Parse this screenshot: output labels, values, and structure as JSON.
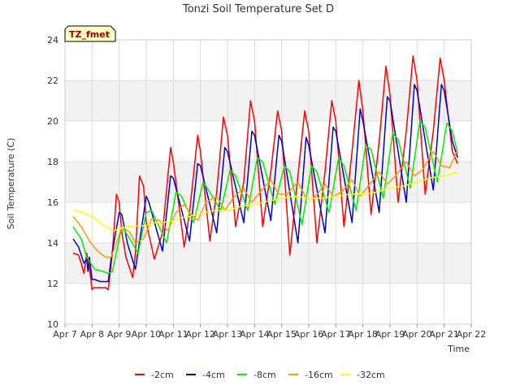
{
  "chart_data": {
    "type": "line",
    "title": "Tonzi Soil Temperature Set D",
    "badge": "TZ_fmet",
    "xlabel": "Time",
    "ylabel": "Soil Temperature (C)",
    "ylim": [
      10,
      24
    ],
    "yticks": [
      10,
      12,
      14,
      16,
      18,
      20,
      22,
      24
    ],
    "xlim": [
      7,
      22
    ],
    "xticks": [
      {
        "x": 7,
        "label": "Apr 7"
      },
      {
        "x": 8,
        "label": "Apr 8"
      },
      {
        "x": 9,
        "label": "Apr 9"
      },
      {
        "x": 10,
        "label": "Apr 10"
      },
      {
        "x": 11,
        "label": "Apr 11"
      },
      {
        "x": 12,
        "label": "Apr 12"
      },
      {
        "x": 13,
        "label": "Apr 13"
      },
      {
        "x": 14,
        "label": "Apr 14"
      },
      {
        "x": 15,
        "label": "Apr 15"
      },
      {
        "x": 16,
        "label": "Apr 16"
      },
      {
        "x": 17,
        "label": "Apr 17"
      },
      {
        "x": 18,
        "label": "Apr 18"
      },
      {
        "x": 19,
        "label": "Apr 19"
      },
      {
        "x": 20,
        "label": "Apr 20"
      },
      {
        "x": 21,
        "label": "Apr 21"
      },
      {
        "x": 22,
        "label": "Apr 22"
      }
    ],
    "grid": true,
    "legend_position": "bottom",
    "series": [
      {
        "name": "-2cm",
        "color": "#ff0000",
        "x": [
          7.3,
          7.5,
          7.6,
          7.7,
          7.8,
          7.9,
          8.0,
          8.05,
          8.2,
          8.5,
          8.6,
          8.75,
          8.9,
          9.0,
          9.1,
          9.25,
          9.5,
          9.6,
          9.75,
          9.9,
          10.0,
          10.3,
          10.6,
          10.9,
          11.0,
          11.4,
          11.6,
          11.9,
          12.0,
          12.35,
          12.6,
          12.85,
          13.0,
          13.3,
          13.6,
          13.85,
          14.0,
          14.3,
          14.6,
          14.85,
          15.0,
          15.3,
          15.6,
          15.85,
          16.0,
          16.3,
          16.6,
          16.85,
          17.0,
          17.3,
          17.6,
          17.85,
          18.0,
          18.3,
          18.6,
          18.85,
          19.0,
          19.3,
          19.6,
          19.85,
          20.0,
          20.3,
          20.6,
          20.85,
          21.0,
          21.3,
          21.5
        ],
        "y": [
          13.5,
          13.4,
          13.0,
          12.5,
          13.5,
          12.8,
          11.7,
          11.8,
          11.8,
          11.8,
          11.7,
          13.5,
          16.4,
          16.0,
          14.5,
          13.3,
          12.3,
          13.5,
          17.3,
          16.8,
          15.0,
          13.2,
          14.5,
          18.7,
          18.0,
          13.8,
          15.5,
          19.3,
          18.5,
          14.1,
          16.5,
          20.2,
          19.3,
          14.8,
          17.0,
          21.0,
          20.0,
          14.8,
          17.5,
          20.5,
          19.5,
          13.4,
          17.3,
          20.5,
          19.5,
          14.0,
          17.5,
          21.0,
          20.0,
          14.8,
          18.5,
          22.0,
          20.5,
          15.4,
          19.0,
          22.7,
          21.3,
          16.0,
          19.5,
          23.2,
          22.0,
          16.4,
          19.5,
          23.1,
          22.0,
          18.5,
          17.9
        ]
      },
      {
        "name": "-4cm",
        "color": "#0000cc",
        "x": [
          7.3,
          7.5,
          7.7,
          7.8,
          7.85,
          7.9,
          8.0,
          8.1,
          8.3,
          8.6,
          8.7,
          9.0,
          9.1,
          9.3,
          9.6,
          9.7,
          10.0,
          10.1,
          10.6,
          10.9,
          11.0,
          11.6,
          11.9,
          12.0,
          12.6,
          12.9,
          13.0,
          13.6,
          13.9,
          14.0,
          14.6,
          14.9,
          15.0,
          15.6,
          15.9,
          16.0,
          16.6,
          16.9,
          17.0,
          17.6,
          17.9,
          18.0,
          18.6,
          18.9,
          19.0,
          19.6,
          19.9,
          20.0,
          20.6,
          20.9,
          21.0,
          21.3,
          21.5
        ],
        "y": [
          14.2,
          13.8,
          13.0,
          13.2,
          12.6,
          13.3,
          12.2,
          12.2,
          12.1,
          12.1,
          13.2,
          15.5,
          15.4,
          14.0,
          12.7,
          13.6,
          16.3,
          16.0,
          13.6,
          17.3,
          17.2,
          14.1,
          17.9,
          17.8,
          14.5,
          18.7,
          18.5,
          15.0,
          19.5,
          19.3,
          15.1,
          19.3,
          19.0,
          14.0,
          19.2,
          18.8,
          14.5,
          19.7,
          19.5,
          15.0,
          20.6,
          20.0,
          15.5,
          21.2,
          21.0,
          16.0,
          21.8,
          21.5,
          16.6,
          21.8,
          21.5,
          19.0,
          18.2
        ]
      },
      {
        "name": "-8cm",
        "color": "#00ee00",
        "x": [
          7.3,
          7.6,
          7.8,
          8.0,
          8.1,
          8.4,
          8.6,
          8.75,
          9.1,
          9.35,
          9.7,
          10.0,
          10.2,
          10.75,
          11.1,
          11.3,
          11.75,
          12.1,
          12.3,
          12.75,
          13.1,
          13.3,
          13.75,
          14.1,
          14.3,
          14.75,
          15.1,
          15.3,
          15.75,
          16.1,
          16.3,
          16.75,
          17.1,
          17.3,
          17.75,
          18.1,
          18.3,
          18.75,
          19.1,
          19.3,
          19.75,
          20.1,
          20.3,
          20.75,
          21.1,
          21.3,
          21.5
        ],
        "y": [
          14.8,
          14.2,
          13.3,
          12.9,
          12.7,
          12.6,
          12.5,
          12.6,
          14.8,
          14.3,
          13.5,
          15.5,
          15.6,
          14.0,
          16.5,
          16.3,
          15.0,
          17.0,
          16.6,
          15.6,
          17.6,
          17.3,
          15.6,
          18.2,
          18.0,
          15.9,
          17.8,
          17.5,
          14.9,
          17.8,
          17.5,
          15.5,
          18.2,
          17.8,
          15.6,
          18.8,
          18.6,
          16.2,
          19.4,
          19.1,
          16.7,
          20.0,
          19.7,
          17.0,
          19.9,
          19.5,
          18.4
        ]
      },
      {
        "name": "-16cm",
        "color": "#ff9900",
        "x": [
          7.3,
          7.6,
          7.9,
          8.2,
          8.5,
          8.7,
          8.9,
          9.1,
          9.4,
          9.6,
          9.9,
          10.2,
          10.5,
          10.8,
          11.1,
          11.4,
          11.6,
          11.9,
          12.2,
          12.6,
          12.9,
          13.2,
          13.6,
          13.9,
          14.2,
          14.6,
          14.9,
          15.2,
          15.6,
          15.9,
          16.2,
          16.6,
          16.9,
          17.2,
          17.6,
          17.9,
          18.2,
          18.6,
          18.9,
          19.2,
          19.6,
          19.9,
          20.2,
          20.6,
          20.9,
          21.2,
          21.5
        ],
        "y": [
          15.3,
          14.8,
          14.1,
          13.6,
          13.3,
          13.3,
          14.0,
          14.8,
          14.5,
          14.0,
          14.2,
          15.2,
          15.1,
          14.6,
          15.5,
          15.9,
          15.5,
          15.1,
          16.0,
          16.3,
          15.6,
          16.2,
          16.7,
          16.0,
          16.5,
          17.1,
          16.4,
          16.4,
          17.0,
          16.2,
          16.2,
          16.9,
          16.3,
          16.5,
          17.1,
          16.3,
          16.8,
          17.5,
          16.9,
          17.3,
          18.0,
          17.3,
          17.6,
          18.5,
          17.8,
          17.7,
          18.6
        ]
      },
      {
        "name": "-32cm",
        "color": "#ffff00",
        "x": [
          7.3,
          7.6,
          8.0,
          8.4,
          8.8,
          9.0,
          9.3,
          9.6,
          10.0,
          10.3,
          10.6,
          11.0,
          11.3,
          11.6,
          12.0,
          12.5,
          13.0,
          13.5,
          14.0,
          14.5,
          15.0,
          15.5,
          16.0,
          16.5,
          17.0,
          17.5,
          18.0,
          18.5,
          19.0,
          19.5,
          20.0,
          20.5,
          21.0,
          21.5
        ],
        "y": [
          15.6,
          15.55,
          15.3,
          14.9,
          14.6,
          14.7,
          14.8,
          14.85,
          14.85,
          15.0,
          15.0,
          15.1,
          15.25,
          15.3,
          15.45,
          15.6,
          15.6,
          15.8,
          15.9,
          16.05,
          16.2,
          16.3,
          16.2,
          16.2,
          16.3,
          16.4,
          16.4,
          16.5,
          16.7,
          16.8,
          17.0,
          17.2,
          17.3,
          17.5
        ]
      }
    ]
  }
}
